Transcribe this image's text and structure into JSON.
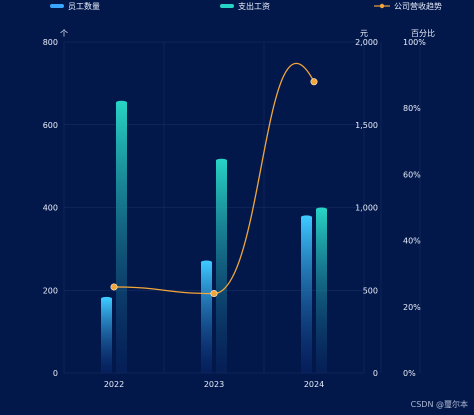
{
  "colors": {
    "background": "#03184a",
    "bar1_top": "#3dc8ff",
    "bar1_bottom": "#0a2a7a",
    "bar2_top": "#27d3c4",
    "bar2_bottom": "#0a2a6a",
    "line": "#f2a53a",
    "grid": "#1b2f66",
    "axis_text": "#e8eefc"
  },
  "legend": {
    "employees": "员工数量",
    "salary": "支出工资",
    "trend": "公司营收趋势"
  },
  "axis_units": {
    "left": "个",
    "middle": "元",
    "right": "百分比"
  },
  "watermark": "CSDN @璽尔本",
  "chart_data": {
    "type": "bar",
    "categories": [
      "2022",
      "2023",
      "2024"
    ],
    "series": [
      {
        "name": "员工数量",
        "type": "bar",
        "axis": "left",
        "values": [
          180,
          268,
          377
        ]
      },
      {
        "name": "支出工资",
        "type": "bar",
        "axis": "middle",
        "values": [
          1635,
          1285,
          990
        ]
      },
      {
        "name": "公司营收趋势",
        "type": "line",
        "axis": "right",
        "smooth": true,
        "values": [
          26,
          24,
          88
        ]
      }
    ],
    "y_axes": {
      "left": {
        "unit": "个",
        "range": [
          0,
          800
        ],
        "ticks": [
          "0",
          "200",
          "400",
          "600",
          "800"
        ]
      },
      "middle": {
        "unit": "元",
        "range": [
          0,
          2000
        ],
        "ticks": [
          "0",
          "500",
          "1,000",
          "1,500",
          "2,000"
        ]
      },
      "right": {
        "unit": "百分比",
        "range": [
          0,
          100
        ],
        "ticks": [
          "0%",
          "20%",
          "40%",
          "60%",
          "80%",
          "100%"
        ]
      }
    },
    "grid": true,
    "legend_position": "top"
  }
}
